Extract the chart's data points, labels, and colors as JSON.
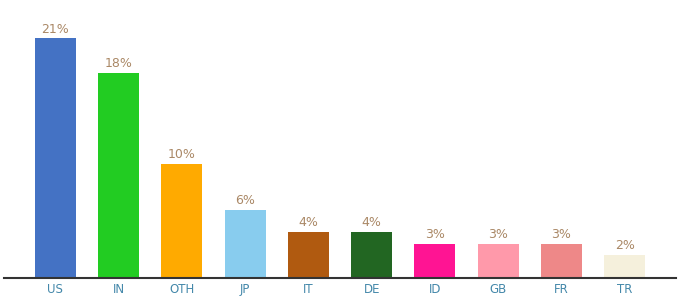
{
  "categories": [
    "US",
    "IN",
    "OTH",
    "JP",
    "IT",
    "DE",
    "ID",
    "GB",
    "FR",
    "TR"
  ],
  "values": [
    21,
    18,
    10,
    6,
    4,
    4,
    3,
    3,
    3,
    2
  ],
  "bar_colors": [
    "#4472c4",
    "#22cc22",
    "#ffaa00",
    "#88ccee",
    "#b05a10",
    "#226622",
    "#ff1493",
    "#ff99aa",
    "#ee8888",
    "#f5f0dc"
  ],
  "label_color": "#aa8866",
  "bar_label_fontsize": 9,
  "xlabel_fontsize": 8.5,
  "ylim": [
    0,
    24
  ],
  "background_color": "#ffffff"
}
